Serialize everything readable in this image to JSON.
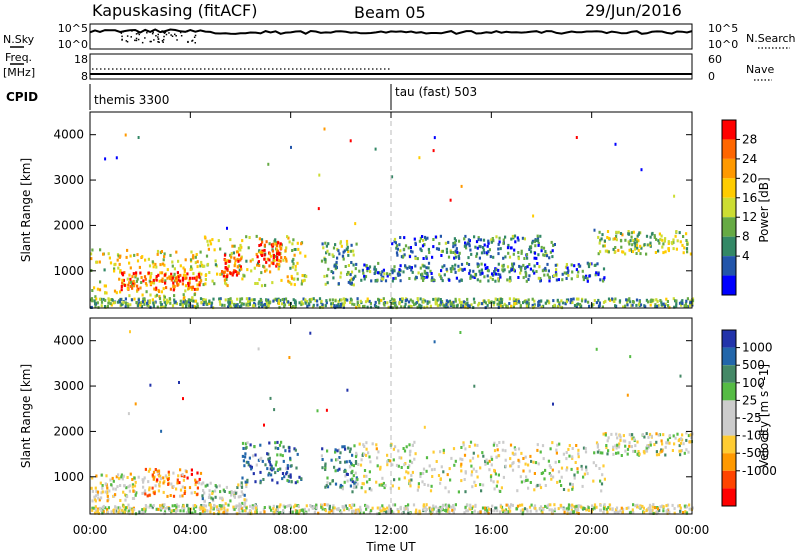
{
  "header": {
    "station": "Kapuskasing (fitACF)",
    "beam": "Beam 05",
    "date": "29/Jun/2016"
  },
  "top_panels": {
    "nsky_label": "N.Sky",
    "nsky_ticks": [
      "10^5",
      "10^0"
    ],
    "nsearch_label": "N.Search",
    "nsearch_ticks": [
      "10^5",
      "10^0"
    ],
    "freq_label_1": "Freq.",
    "freq_label_2": "[MHz]",
    "freq_ticks": [
      "18",
      "8"
    ],
    "nave_label": "Nave",
    "nave_ticks": [
      "60",
      "0"
    ],
    "cpid_label": "CPID",
    "cpid_blocks": [
      {
        "start_hour": 0,
        "end_hour": 12,
        "text": "themis 3300"
      },
      {
        "start_hour": 12,
        "end_hour": 24,
        "text": "tau (fast) 503"
      }
    ]
  },
  "xaxis": {
    "label": "Time UT",
    "ticks": [
      "00:00",
      "04:00",
      "08:00",
      "12:00",
      "16:00",
      "20:00",
      "00:00"
    ]
  },
  "chart_data": [
    {
      "type": "heatmap",
      "name": "power",
      "x_range_hours": [
        0,
        24
      ],
      "ylabel": "Slant Range [km]",
      "ylim": [
        180,
        4500
      ],
      "yticks": [
        "4000",
        "3000",
        "2000",
        "1000"
      ],
      "colorbar": {
        "label": "Power [dB]",
        "ticks": [
          "28",
          "24",
          "20",
          "16",
          "12",
          "8",
          "4"
        ],
        "colors": [
          "#ff0000",
          "#ff6600",
          "#ff9900",
          "#ffcc00",
          "#ccdd33",
          "#66aa44",
          "#338866",
          "#2255aa",
          "#0000ff"
        ]
      },
      "regions": [
        {
          "t": [
            0.0,
            4.6
          ],
          "r": [
            300,
            1500
          ],
          "level": 0.55
        },
        {
          "t": [
            1.2,
            4.4
          ],
          "r": [
            600,
            1000
          ],
          "level": 0.85
        },
        {
          "t": [
            4.5,
            8.6
          ],
          "r": [
            700,
            1800
          ],
          "level": 0.5
        },
        {
          "t": [
            5.2,
            6.0
          ],
          "r": [
            900,
            1400
          ],
          "level": 0.9
        },
        {
          "t": [
            6.6,
            7.6
          ],
          "r": [
            1100,
            1700
          ],
          "level": 0.85
        },
        {
          "t": [
            9.2,
            10.6
          ],
          "r": [
            700,
            1700
          ],
          "level": 0.35
        },
        {
          "t": [
            10.5,
            20.5
          ],
          "r": [
            800,
            1200
          ],
          "level": 0.25
        },
        {
          "t": [
            12.0,
            18.5
          ],
          "r": [
            1300,
            1800
          ],
          "level": 0.25
        },
        {
          "t": [
            20.2,
            24.0
          ],
          "r": [
            1400,
            1900
          ],
          "level": 0.45
        },
        {
          "t": [
            0.0,
            24.0
          ],
          "r": [
            220,
            420
          ],
          "level": 0.35
        }
      ]
    },
    {
      "type": "heatmap",
      "name": "velocity",
      "x_range_hours": [
        0,
        24
      ],
      "ylabel": "Slant Range [km]",
      "ylim": [
        180,
        4500
      ],
      "yticks": [
        "4000",
        "3000",
        "2000",
        "1000"
      ],
      "colorbar": {
        "label": "Velocity [m s^-1]",
        "ticks": [
          "1000",
          "500",
          "100",
          "25",
          "-25",
          "-100",
          "-500",
          "-1000"
        ],
        "colors": [
          "#2233aa",
          "#2266aa",
          "#448866",
          "#55bb44",
          "#cccccc",
          "#cccccc",
          "#ffcc33",
          "#ff9900",
          "#ff4400",
          "#ff0000"
        ]
      },
      "regions": [
        {
          "t": [
            0.0,
            2.2
          ],
          "r": [
            500,
            1100
          ],
          "level": 0.45
        },
        {
          "t": [
            2.0,
            4.4
          ],
          "r": [
            600,
            1200
          ],
          "level": 0.28
        },
        {
          "t": [
            4.4,
            6.2
          ],
          "r": [
            300,
            900
          ],
          "level": 0.6
        },
        {
          "t": [
            6.0,
            8.4
          ],
          "r": [
            900,
            1800
          ],
          "level": 0.8
        },
        {
          "t": [
            9.2,
            10.6
          ],
          "r": [
            700,
            1700
          ],
          "level": 0.75
        },
        {
          "t": [
            10.5,
            20.5
          ],
          "r": [
            700,
            1800
          ],
          "level": 0.5
        },
        {
          "t": [
            20.2,
            24.0
          ],
          "r": [
            1500,
            2000
          ],
          "level": 0.5
        },
        {
          "t": [
            0.0,
            24.0
          ],
          "r": [
            220,
            420
          ],
          "level": 0.5
        }
      ]
    }
  ]
}
